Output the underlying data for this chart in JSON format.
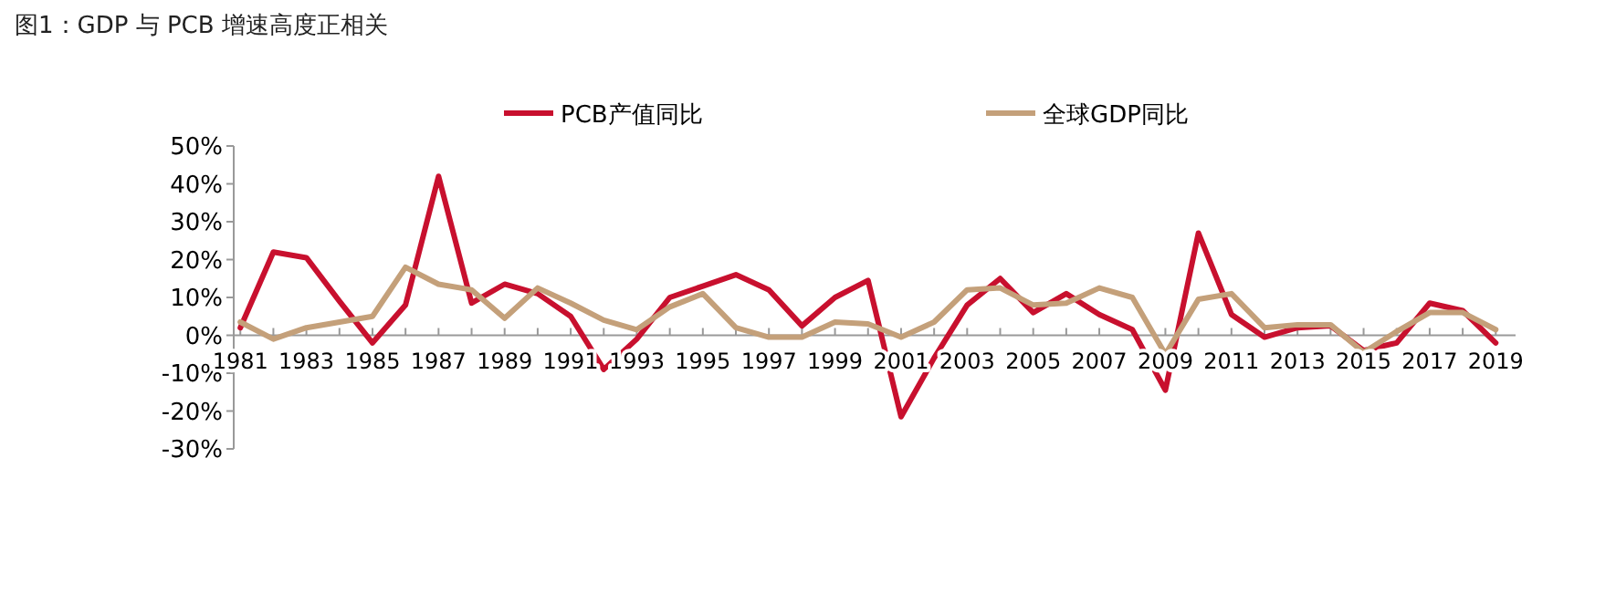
{
  "chart_data": {
    "type": "line",
    "title": "图1：GDP 与 PCB 增速高度正相关",
    "x": [
      1981,
      1982,
      1983,
      1984,
      1985,
      1986,
      1987,
      1988,
      1989,
      1990,
      1991,
      1992,
      1993,
      1994,
      1995,
      1996,
      1997,
      1998,
      1999,
      2000,
      2001,
      2002,
      2003,
      2004,
      2005,
      2006,
      2007,
      2008,
      2009,
      2010,
      2011,
      2012,
      2013,
      2014,
      2015,
      2016,
      2017,
      2018,
      2019
    ],
    "xlim": [
      1980.8,
      2019.6
    ],
    "xticks": [
      1981,
      {
        "value": 1982,
        "label": null
      },
      1983,
      {
        "value": 1984,
        "label": null
      },
      1985,
      {
        "value": 1986,
        "label": null
      },
      1987,
      {
        "value": 1988,
        "label": null
      },
      1989,
      {
        "value": 1990,
        "label": null
      },
      1991,
      {
        "value": 1992,
        "label": null
      },
      1993,
      {
        "value": 1994,
        "label": null
      },
      1995,
      {
        "value": 1996,
        "label": null
      },
      1997,
      {
        "value": 1998,
        "label": null
      },
      1999,
      {
        "value": 2000,
        "label": null
      },
      2001,
      {
        "value": 2002,
        "label": null
      },
      2003,
      {
        "value": 2004,
        "label": null
      },
      2005,
      {
        "value": 2006,
        "label": null
      },
      2007,
      {
        "value": 2008,
        "label": null
      },
      2009,
      {
        "value": 2010,
        "label": null
      },
      2011,
      {
        "value": 2012,
        "label": null
      },
      2013,
      {
        "value": 2014,
        "label": null
      },
      2015,
      {
        "value": 2016,
        "label": null
      },
      2017,
      {
        "value": 2018,
        "label": null
      },
      2019
    ],
    "ylim": [
      -30,
      50
    ],
    "yticks": [
      {
        "value": -30,
        "label": "-30%"
      },
      {
        "value": -20,
        "label": "-20%"
      },
      {
        "value": -10,
        "label": "-10%"
      },
      {
        "value": 0,
        "label": "0%"
      },
      {
        "value": 10,
        "label": "10%"
      },
      {
        "value": 20,
        "label": "20%"
      },
      {
        "value": 30,
        "label": "30%"
      },
      {
        "value": 40,
        "label": "40%"
      },
      {
        "value": 50,
        "label": "50%"
      }
    ],
    "legend": "top",
    "series": [
      {
        "name": "PCB产值同比",
        "color": "#c8102e",
        "values": [
          2,
          22,
          20.5,
          9,
          -2,
          8,
          42,
          8.5,
          13.5,
          11,
          5,
          -9,
          -1,
          10,
          13,
          16,
          12,
          2.5,
          10,
          14.5,
          -21.5,
          -6,
          8,
          15,
          6,
          11,
          5.5,
          1.5,
          -14.5,
          27,
          5.5,
          -0.5,
          2,
          2.5,
          -4,
          -2,
          8.5,
          6.5,
          -2
        ]
      },
      {
        "name": "全球GDP同比",
        "color": "#c4a07a",
        "values": [
          3.5,
          -1,
          2,
          3.5,
          5,
          18,
          13.5,
          12,
          4.5,
          12.5,
          8.5,
          4,
          1.5,
          7.5,
          11,
          2,
          -0.5,
          -0.5,
          3.5,
          3,
          -0.5,
          3.5,
          12,
          12.5,
          8,
          8.5,
          12.5,
          10,
          -5,
          9.5,
          11,
          2,
          2.8,
          2.8,
          -4.5,
          1,
          6,
          6,
          1.5
        ]
      }
    ]
  }
}
